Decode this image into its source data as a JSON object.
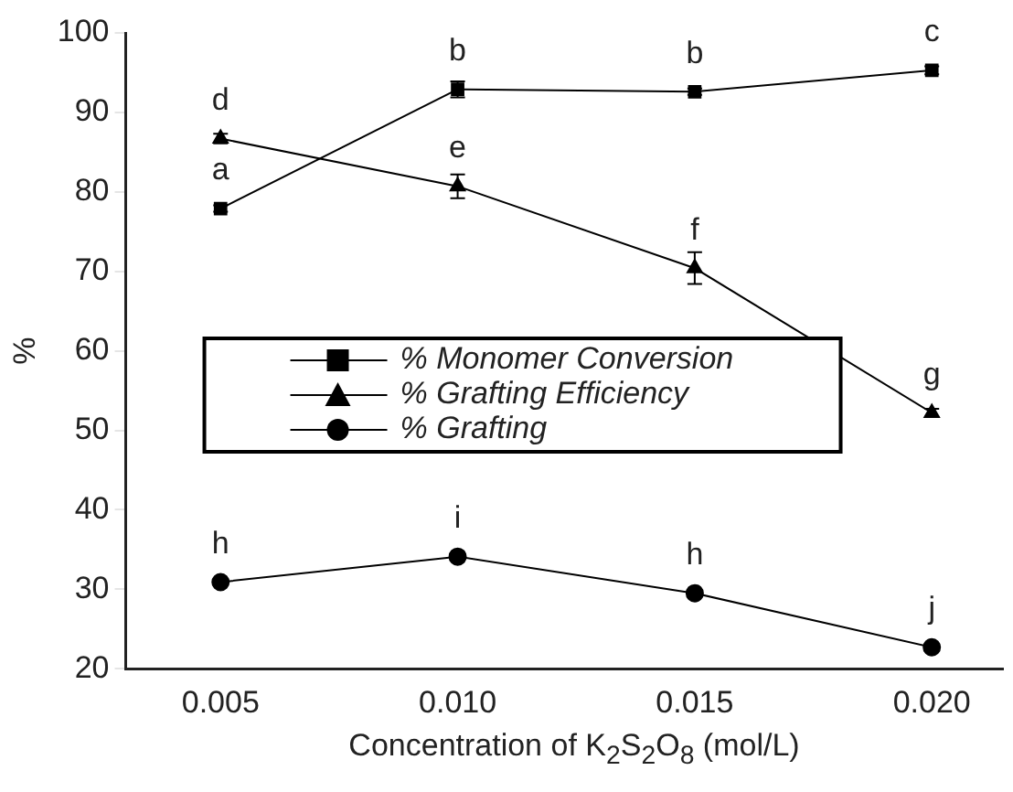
{
  "chart_data": {
    "type": "line",
    "xlabel": "Concentration of K$_{2}$S$_{2}$O$_{8}$ (mol/L)",
    "ylabel": "%",
    "x": [
      0.005,
      0.01,
      0.015,
      0.02
    ],
    "xlim": [
      0.003,
      0.0215
    ],
    "xticks": [
      {
        "value": 0.005,
        "label": "0.005"
      },
      {
        "value": 0.01,
        "label": "0.010"
      },
      {
        "value": 0.015,
        "label": "0.015"
      },
      {
        "value": 0.02,
        "label": "0.020"
      }
    ],
    "ylim": [
      20,
      100
    ],
    "yticks": [
      20,
      30,
      40,
      50,
      60,
      70,
      80,
      90,
      100
    ],
    "grid": false,
    "legend": "center left",
    "line_style": "solid",
    "series": [
      {
        "name": "% Monomer Conversion",
        "color": "#000000",
        "marker": "square",
        "values": [
          77.9,
          92.9,
          92.6,
          95.3
        ],
        "errors": [
          0.4,
          1,
          0.4,
          0.5
        ]
      },
      {
        "name": "% Grafting Efficiency",
        "color": "#000000",
        "marker": "triangle",
        "values": [
          86.7,
          80.7,
          70.4,
          52.2
        ],
        "errors": [
          0.6,
          1.5,
          2,
          0.5
        ]
      },
      {
        "name": "% Grafting",
        "color": "#000000",
        "marker": "circle",
        "values": [
          30.9,
          34.1,
          29.5,
          22.7
        ],
        "errors": [
          0.4,
          0.3,
          0.4,
          0.5
        ]
      }
    ],
    "annotations": [
      {
        "text": "a",
        "x": 0.005,
        "y": 77.9
      },
      {
        "text": "b",
        "x": 0.01,
        "y": 92.9
      },
      {
        "text": "b",
        "x": 0.015,
        "y": 92.6
      },
      {
        "text": "c",
        "x": 0.02,
        "y": 95.3
      },
      {
        "text": "d",
        "x": 0.005,
        "y": 86.7
      },
      {
        "text": "e",
        "x": 0.01,
        "y": 80.7
      },
      {
        "text": "f",
        "x": 0.015,
        "y": 70.4
      },
      {
        "text": "g",
        "x": 0.02,
        "y": 52.2
      },
      {
        "text": "h",
        "x": 0.005,
        "y": 30.9
      },
      {
        "text": "i",
        "x": 0.01,
        "y": 34.1
      },
      {
        "text": "h",
        "x": 0.015,
        "y": 29.5
      },
      {
        "text": "j",
        "x": 0.02,
        "y": 22.7
      }
    ]
  }
}
